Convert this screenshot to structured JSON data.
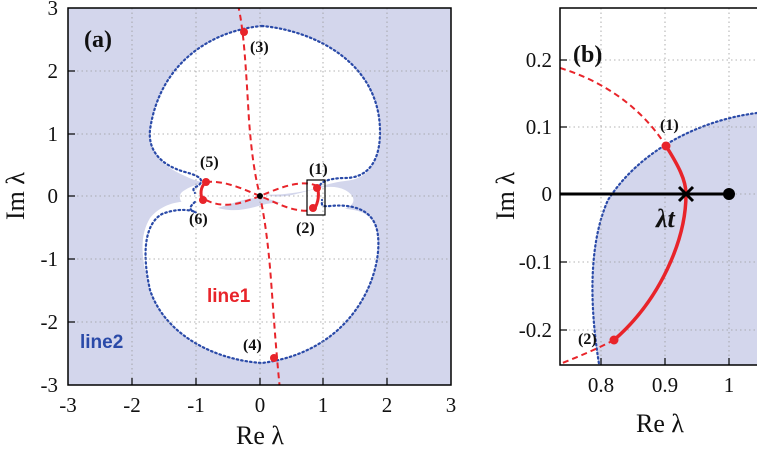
{
  "colors": {
    "stable_fill": "#d3d6ec",
    "line1": "#e8242a",
    "line2": "#2a4aa8",
    "axis": "#000000",
    "grid": "#9a9a9a"
  },
  "chart_data": [
    {
      "type": "line",
      "panel_label": "(a)",
      "xlabel": "Re λ",
      "ylabel": "Im λ",
      "xlim": [
        -3,
        3
      ],
      "ylim": [
        -3,
        3
      ],
      "xticks": [
        "-3",
        "-2",
        "-1",
        "0",
        "1",
        "2",
        "3"
      ],
      "yticks": [
        "-3",
        "-2",
        "-1",
        "0",
        "1",
        "2",
        "3"
      ],
      "grid": true,
      "series": [
        {
          "name": "line1",
          "style": "red dashed with solid segments",
          "points": [
            [
              -0.12,
              3.0
            ],
            [
              -0.22,
              2.6
            ],
            [
              -0.2,
              2.0
            ],
            [
              -0.14,
              1.0
            ],
            [
              -0.08,
              0.5
            ],
            [
              0.0,
              0.0
            ],
            [
              0.08,
              -0.5
            ],
            [
              0.14,
              -1.0
            ],
            [
              0.2,
              -2.0
            ],
            [
              0.22,
              -2.6
            ],
            [
              0.28,
              -3.0
            ]
          ]
        },
        {
          "name": "line2",
          "style": "blue dotted, boundary of shaded region",
          "points": [
            [
              0,
              2.6
            ],
            [
              0.8,
              2.4
            ],
            [
              1.5,
              1.8
            ],
            [
              1.2,
              0.5
            ],
            [
              0.6,
              0.25
            ],
            [
              0.0,
              0.15
            ],
            [
              -0.6,
              0.25
            ],
            [
              -1.2,
              0.5
            ],
            [
              -1.5,
              1.8
            ],
            [
              -0.8,
              2.4
            ]
          ]
        }
      ],
      "marked_points": [
        {
          "label": "(1)",
          "x": 0.92,
          "y": 0.07
        },
        {
          "label": "(2)",
          "x": 0.83,
          "y": -0.21
        },
        {
          "label": "(3)",
          "x": -0.28,
          "y": 2.62
        },
        {
          "label": "(4)",
          "x": 0.22,
          "y": -2.62
        },
        {
          "label": "(5)",
          "x": -0.9,
          "y": 0.22
        },
        {
          "label": "(6)",
          "x": -0.95,
          "y": -0.07
        }
      ]
    },
    {
      "type": "line",
      "panel_label": "(b)",
      "xlabel": "Re λ",
      "ylabel": "Im λ",
      "xlim": [
        0.75,
        1.05
      ],
      "ylim": [
        -0.25,
        0.25
      ],
      "xticks": [
        "0.8",
        "0.9",
        "1"
      ],
      "yticks": [
        "0.2",
        "0.1",
        "0",
        "-0.1",
        "-0.2"
      ],
      "grid": true,
      "annotation": "λt",
      "marked_points": [
        {
          "label": "(1)",
          "x": 0.905,
          "y": 0.072
        },
        {
          "label": "(2)",
          "x": 0.83,
          "y": -0.212
        }
      ],
      "special_points": [
        {
          "label": "λt",
          "x": 0.935,
          "y": 0.0,
          "marker": "cross"
        },
        {
          "x": 1.0,
          "y": 0.0,
          "marker": "dot"
        }
      ]
    }
  ]
}
